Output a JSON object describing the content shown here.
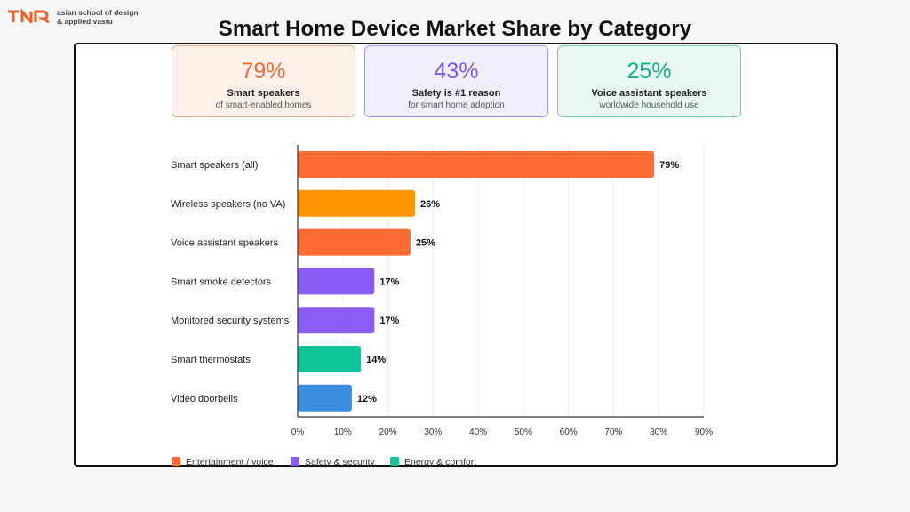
{
  "brand": {
    "line1": "asian school of design",
    "line2": "& applied vastu",
    "color": "#e8622c"
  },
  "title": "Smart Home Device Market Share by Category",
  "stat_cards": [
    {
      "value": "79%",
      "label": "Smart speakers",
      "sub": "of smart-enabled homes",
      "color": "#f26a35"
    },
    {
      "value": "43%",
      "label": "Safety is #1 reason",
      "sub": "for smart home adoption",
      "color": "#7c5ce6"
    },
    {
      "value": "25%",
      "label": "Voice assistant speakers",
      "sub": "worldwide household use",
      "color": "#12b28b"
    }
  ],
  "chart_data": {
    "type": "bar",
    "orientation": "horizontal",
    "categories": [
      "Smart speakers (all)",
      "Wireless speakers (no VA)",
      "Voice assistant speakers",
      "Smart smoke detectors",
      "Monitored security systems",
      "Smart thermostats",
      "Video doorbells"
    ],
    "values": [
      79,
      26,
      25,
      17,
      17,
      14,
      12
    ],
    "value_labels": [
      "79%",
      "26%",
      "25%",
      "17%",
      "17%",
      "14%",
      "12%"
    ],
    "bar_colors": [
      "#ff6b35",
      "#ff9500",
      "#ff6b35",
      "#8b5cf6",
      "#8b5cf6",
      "#10c49a",
      "#3b8ddd"
    ],
    "xlim": [
      0,
      90
    ],
    "xticks": [
      0,
      10,
      20,
      30,
      40,
      50,
      60,
      70,
      80,
      90
    ],
    "xtick_labels": [
      "0%",
      "10%",
      "20%",
      "30%",
      "40%",
      "50%",
      "60%",
      "70%",
      "80%",
      "90%"
    ],
    "grid": true,
    "legend_position": "bottom-left",
    "legend": [
      {
        "name": "Entertainment / voice",
        "color": "#ff6b35"
      },
      {
        "name": "Safety & security",
        "color": "#8b5cf6"
      },
      {
        "name": "Energy & comfort",
        "color": "#10c49a"
      }
    ]
  }
}
